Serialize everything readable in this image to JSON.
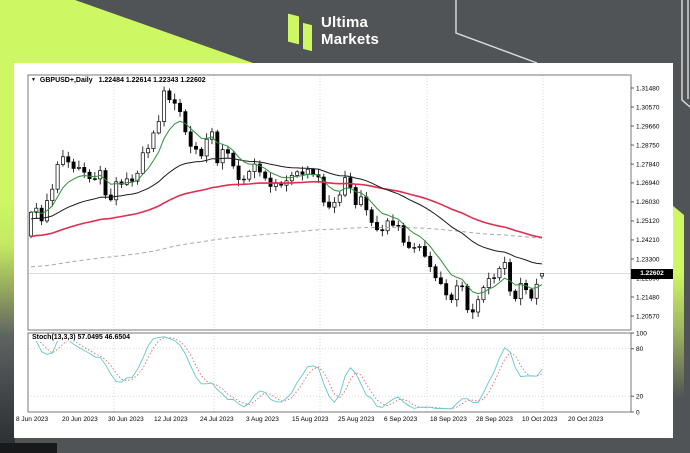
{
  "brand": {
    "name_line1": "Ultima",
    "name_line2": "Markets",
    "accent_color": "#CDF763",
    "background_color": "#515456"
  },
  "chart": {
    "title_symbol": "GBPUSD+,Daily",
    "title_ohlc": "1.22484 1.22614 1.22343 1.22602",
    "indicator_label": "Stoch(13,3,3) 57.0495 46.6504",
    "current_price": "1.22602",
    "price_axis": [
      "1.31480",
      "1.30570",
      "1.29660",
      "1.28750",
      "1.27840",
      "1.26940",
      "1.26030",
      "1.25120",
      "1.24210",
      "1.23300",
      "1.22390",
      "1.21480",
      "1.20570"
    ],
    "stoch_axis": [
      "100",
      "80",
      "20",
      "0"
    ],
    "date_axis": [
      "8 Jun 2023",
      "20 Jun 2023",
      "30 Jun 2023",
      "12 Jul 2023",
      "24 Jul 2023",
      "3 Aug 2023",
      "15 Aug 2023",
      "25 Aug 2023",
      "6 Sep 2023",
      "18 Sep 2023",
      "28 Sep 2023",
      "10 Oct 2023",
      "20 Oct 2023"
    ]
  },
  "chart_data": {
    "type": "candlestick",
    "symbol": "GBPUSD+",
    "timeframe": "Daily",
    "ohlc_display": {
      "open": "1.22484",
      "high": "1.22614",
      "low": "1.22343",
      "close": "1.22602"
    },
    "price_axis_range": {
      "top_label": 1.3148,
      "bottom_label": 1.2057
    },
    "first_open": 1.244,
    "closes": [
      1.2553,
      1.2573,
      1.2512,
      1.2609,
      1.2664,
      1.2782,
      1.2819,
      1.2794,
      1.2763,
      1.2768,
      1.2745,
      1.2714,
      1.2713,
      1.2753,
      1.2636,
      1.2613,
      1.2699,
      1.2687,
      1.2713,
      1.2702,
      1.274,
      1.2838,
      1.2858,
      1.2933,
      1.2988,
      1.3134,
      1.3092,
      1.3075,
      1.3035,
      1.2938,
      1.2869,
      1.2855,
      1.2823,
      1.2903,
      1.2938,
      1.279,
      1.2853,
      1.2836,
      1.2775,
      1.271,
      1.2712,
      1.2748,
      1.2784,
      1.2746,
      1.2717,
      1.2677,
      1.2695,
      1.2683,
      1.2704,
      1.273,
      1.2747,
      1.2735,
      1.2759,
      1.2733,
      1.2722,
      1.2602,
      1.2578,
      1.2601,
      1.2636,
      1.2719,
      1.2672,
      1.259,
      1.2627,
      1.2565,
      1.2505,
      1.247,
      1.2465,
      1.2512,
      1.2491,
      1.249,
      1.241,
      1.2385,
      1.2385,
      1.239,
      1.2343,
      1.2293,
      1.224,
      1.2212,
      1.2158,
      1.2135,
      1.2201,
      1.22,
      1.2087,
      1.2076,
      1.2135,
      1.2193,
      1.2236,
      1.224,
      1.2285,
      1.2313,
      1.2176,
      1.214,
      1.2213,
      1.2183,
      1.2142,
      1.2209,
      1.22602
    ],
    "last_candle": {
      "o": 1.22484,
      "h": 1.22614,
      "l": 1.22343,
      "c": 1.22602
    },
    "moving_averages": [
      {
        "name": "long-ma",
        "type": "ema",
        "period": 240,
        "seed": 1.229,
        "color": "#a8a8a8",
        "width": 1,
        "dash": "4,3"
      },
      {
        "name": "slow-ma",
        "type": "ema",
        "period": 75,
        "seed": 1.2435,
        "color": "#e02e4e",
        "width": 1.6,
        "dash": ""
      },
      {
        "name": "mid-ma",
        "type": "ema",
        "period": 35,
        "seed": 1.252,
        "color": "#1b1b1b",
        "width": 1,
        "dash": ""
      },
      {
        "name": "fast-ma",
        "type": "ema",
        "period": 8,
        "seed": null,
        "color": "#2f8f3c",
        "width": 1,
        "dash": ""
      }
    ],
    "stochastic": {
      "k_period": 13,
      "slowing": 3,
      "d_period": 3,
      "k_value": 57.0495,
      "d_value": 46.6504,
      "levels": [
        80,
        20
      ],
      "k_color": "#63c8c8",
      "d_color": "#e06a6a"
    }
  }
}
